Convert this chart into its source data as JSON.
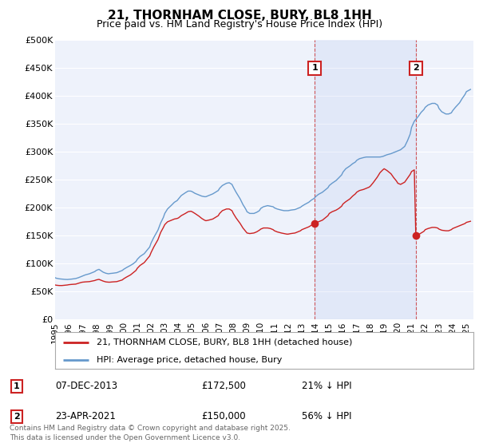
{
  "title": "21, THORNHAM CLOSE, BURY, BL8 1HH",
  "subtitle": "Price paid vs. HM Land Registry's House Price Index (HPI)",
  "ylabel_ticks": [
    "£0",
    "£50K",
    "£100K",
    "£150K",
    "£200K",
    "£250K",
    "£300K",
    "£350K",
    "£400K",
    "£450K",
    "£500K"
  ],
  "ytick_values": [
    0,
    50000,
    100000,
    150000,
    200000,
    250000,
    300000,
    350000,
    400000,
    450000,
    500000
  ],
  "ylim": [
    0,
    500000
  ],
  "xlim_start": 1995.0,
  "xlim_end": 2025.5,
  "background_color": "#ffffff",
  "plot_bg_color": "#eef2fb",
  "grid_color": "#ffffff",
  "hpi_color": "#6699cc",
  "price_color": "#cc2222",
  "legend_label_price": "21, THORNHAM CLOSE, BURY, BL8 1HH (detached house)",
  "legend_label_hpi": "HPI: Average price, detached house, Bury",
  "marker1_x": 2013.93,
  "marker1_y": 172500,
  "marker1_label": "1",
  "marker1_date": "07-DEC-2013",
  "marker1_price": "£172,500",
  "marker1_hpi": "21% ↓ HPI",
  "marker2_x": 2021.31,
  "marker2_y": 150000,
  "marker2_label": "2",
  "marker2_date": "23-APR-2021",
  "marker2_price": "£150,000",
  "marker2_hpi": "56% ↓ HPI",
  "footer": "Contains HM Land Registry data © Crown copyright and database right 2025.\nThis data is licensed under the Open Government Licence v3.0.",
  "hpi_data": [
    [
      1995.0,
      75000
    ],
    [
      1995.1,
      74000
    ],
    [
      1995.2,
      73500
    ],
    [
      1995.3,
      73000
    ],
    [
      1995.5,
      72500
    ],
    [
      1995.7,
      72000
    ],
    [
      1995.9,
      71800
    ],
    [
      1996.0,
      72000
    ],
    [
      1996.2,
      72500
    ],
    [
      1996.5,
      73500
    ],
    [
      1996.7,
      75000
    ],
    [
      1996.9,
      77000
    ],
    [
      1997.0,
      78000
    ],
    [
      1997.2,
      80000
    ],
    [
      1997.5,
      82000
    ],
    [
      1997.7,
      84000
    ],
    [
      1997.9,
      86000
    ],
    [
      1998.0,
      88000
    ],
    [
      1998.2,
      90000
    ],
    [
      1998.5,
      85000
    ],
    [
      1998.7,
      83000
    ],
    [
      1998.9,
      82000
    ],
    [
      1999.0,
      82500
    ],
    [
      1999.2,
      83000
    ],
    [
      1999.5,
      84000
    ],
    [
      1999.7,
      86000
    ],
    [
      1999.9,
      88000
    ],
    [
      2000.0,
      90000
    ],
    [
      2000.2,
      93000
    ],
    [
      2000.5,
      97000
    ],
    [
      2000.7,
      100000
    ],
    [
      2000.9,
      104000
    ],
    [
      2001.0,
      108000
    ],
    [
      2001.2,
      113000
    ],
    [
      2001.5,
      118000
    ],
    [
      2001.7,
      124000
    ],
    [
      2001.9,
      130000
    ],
    [
      2002.0,
      137000
    ],
    [
      2002.2,
      147000
    ],
    [
      2002.5,
      160000
    ],
    [
      2002.7,
      173000
    ],
    [
      2002.9,
      183000
    ],
    [
      2003.0,
      190000
    ],
    [
      2003.2,
      198000
    ],
    [
      2003.5,
      205000
    ],
    [
      2003.7,
      210000
    ],
    [
      2003.9,
      213000
    ],
    [
      2004.0,
      216000
    ],
    [
      2004.2,
      222000
    ],
    [
      2004.5,
      227000
    ],
    [
      2004.7,
      230000
    ],
    [
      2004.9,
      230000
    ],
    [
      2005.0,
      229000
    ],
    [
      2005.2,
      226000
    ],
    [
      2005.5,
      223000
    ],
    [
      2005.7,
      221000
    ],
    [
      2005.9,
      220000
    ],
    [
      2006.0,
      220000
    ],
    [
      2006.2,
      222000
    ],
    [
      2006.5,
      225000
    ],
    [
      2006.7,
      228000
    ],
    [
      2006.9,
      231000
    ],
    [
      2007.0,
      235000
    ],
    [
      2007.2,
      240000
    ],
    [
      2007.5,
      244000
    ],
    [
      2007.7,
      245000
    ],
    [
      2007.9,
      242000
    ],
    [
      2008.0,
      237000
    ],
    [
      2008.2,
      228000
    ],
    [
      2008.5,
      216000
    ],
    [
      2008.7,
      206000
    ],
    [
      2008.9,
      198000
    ],
    [
      2009.0,
      193000
    ],
    [
      2009.2,
      190000
    ],
    [
      2009.5,
      190000
    ],
    [
      2009.7,
      192000
    ],
    [
      2009.9,
      195000
    ],
    [
      2010.0,
      199000
    ],
    [
      2010.2,
      202000
    ],
    [
      2010.5,
      204000
    ],
    [
      2010.7,
      203000
    ],
    [
      2010.9,
      202000
    ],
    [
      2011.0,
      200000
    ],
    [
      2011.2,
      198000
    ],
    [
      2011.5,
      196000
    ],
    [
      2011.7,
      195000
    ],
    [
      2011.9,
      195000
    ],
    [
      2012.0,
      195000
    ],
    [
      2012.2,
      196000
    ],
    [
      2012.5,
      197000
    ],
    [
      2012.7,
      199000
    ],
    [
      2012.9,
      201000
    ],
    [
      2013.0,
      203000
    ],
    [
      2013.2,
      206000
    ],
    [
      2013.5,
      210000
    ],
    [
      2013.7,
      214000
    ],
    [
      2013.9,
      217000
    ],
    [
      2014.0,
      220000
    ],
    [
      2014.2,
      224000
    ],
    [
      2014.5,
      228000
    ],
    [
      2014.7,
      232000
    ],
    [
      2014.9,
      236000
    ],
    [
      2015.0,
      240000
    ],
    [
      2015.2,
      244000
    ],
    [
      2015.5,
      249000
    ],
    [
      2015.7,
      254000
    ],
    [
      2015.9,
      259000
    ],
    [
      2016.0,
      264000
    ],
    [
      2016.2,
      270000
    ],
    [
      2016.5,
      275000
    ],
    [
      2016.7,
      279000
    ],
    [
      2016.9,
      282000
    ],
    [
      2017.0,
      285000
    ],
    [
      2017.2,
      288000
    ],
    [
      2017.5,
      290000
    ],
    [
      2017.7,
      291000
    ],
    [
      2017.9,
      291000
    ],
    [
      2018.0,
      291000
    ],
    [
      2018.2,
      291000
    ],
    [
      2018.5,
      291000
    ],
    [
      2018.7,
      291000
    ],
    [
      2018.9,
      292000
    ],
    [
      2019.0,
      293000
    ],
    [
      2019.2,
      295000
    ],
    [
      2019.5,
      297000
    ],
    [
      2019.7,
      299000
    ],
    [
      2019.9,
      301000
    ],
    [
      2020.0,
      302000
    ],
    [
      2020.2,
      304000
    ],
    [
      2020.5,
      310000
    ],
    [
      2020.7,
      320000
    ],
    [
      2020.9,
      332000
    ],
    [
      2021.0,
      344000
    ],
    [
      2021.2,
      355000
    ],
    [
      2021.5,
      364000
    ],
    [
      2021.7,
      371000
    ],
    [
      2021.9,
      376000
    ],
    [
      2022.0,
      380000
    ],
    [
      2022.2,
      384000
    ],
    [
      2022.5,
      387000
    ],
    [
      2022.7,
      387000
    ],
    [
      2022.9,
      384000
    ],
    [
      2023.0,
      378000
    ],
    [
      2023.2,
      372000
    ],
    [
      2023.5,
      368000
    ],
    [
      2023.7,
      368000
    ],
    [
      2023.9,
      370000
    ],
    [
      2024.0,
      374000
    ],
    [
      2024.2,
      380000
    ],
    [
      2024.5,
      388000
    ],
    [
      2024.7,
      396000
    ],
    [
      2024.9,
      403000
    ],
    [
      2025.0,
      408000
    ],
    [
      2025.3,
      412000
    ]
  ],
  "price_data_seg1": [
    [
      1995.0,
      62000
    ],
    [
      1995.1,
      61500
    ],
    [
      1995.3,
      61000
    ],
    [
      1995.5,
      61000
    ],
    [
      1995.7,
      61500
    ],
    [
      1995.9,
      62000
    ],
    [
      1996.0,
      62500
    ],
    [
      1996.2,
      63000
    ],
    [
      1996.5,
      63500
    ],
    [
      1996.7,
      65000
    ],
    [
      1996.9,
      66500
    ],
    [
      1997.0,
      67000
    ],
    [
      1997.2,
      67500
    ],
    [
      1997.5,
      68000
    ],
    [
      1997.7,
      69000
    ],
    [
      1997.9,
      70000
    ],
    [
      1998.0,
      71000
    ],
    [
      1998.2,
      72000
    ],
    [
      1998.5,
      69000
    ],
    [
      1998.7,
      67500
    ],
    [
      1998.9,
      67000
    ],
    [
      1999.0,
      67000
    ],
    [
      1999.2,
      67500
    ],
    [
      1999.5,
      68000
    ],
    [
      1999.7,
      69500
    ],
    [
      1999.9,
      71000
    ],
    [
      2000.0,
      73000
    ],
    [
      2000.2,
      76000
    ],
    [
      2000.5,
      80000
    ],
    [
      2000.7,
      84000
    ],
    [
      2000.9,
      88000
    ],
    [
      2001.0,
      92000
    ],
    [
      2001.2,
      97000
    ],
    [
      2001.5,
      102000
    ],
    [
      2001.7,
      108000
    ],
    [
      2001.9,
      114000
    ],
    [
      2002.0,
      120000
    ],
    [
      2002.2,
      130000
    ],
    [
      2002.5,
      143000
    ],
    [
      2002.7,
      156000
    ],
    [
      2002.9,
      165000
    ],
    [
      2003.0,
      170000
    ],
    [
      2003.2,
      175000
    ],
    [
      2003.5,
      178000
    ],
    [
      2003.7,
      180000
    ],
    [
      2003.9,
      181000
    ],
    [
      2004.0,
      182000
    ],
    [
      2004.2,
      186000
    ],
    [
      2004.5,
      190000
    ],
    [
      2004.7,
      193000
    ],
    [
      2004.9,
      194000
    ],
    [
      2005.0,
      193000
    ],
    [
      2005.2,
      190000
    ],
    [
      2005.5,
      185000
    ],
    [
      2005.7,
      181000
    ],
    [
      2005.9,
      178000
    ],
    [
      2006.0,
      177000
    ],
    [
      2006.2,
      178000
    ],
    [
      2006.5,
      180000
    ],
    [
      2006.7,
      183000
    ],
    [
      2006.9,
      186000
    ],
    [
      2007.0,
      190000
    ],
    [
      2007.2,
      195000
    ],
    [
      2007.5,
      198000
    ],
    [
      2007.7,
      198000
    ],
    [
      2007.9,
      195000
    ],
    [
      2008.0,
      190000
    ],
    [
      2008.2,
      182000
    ],
    [
      2008.5,
      172000
    ],
    [
      2008.7,
      164000
    ],
    [
      2008.9,
      158000
    ],
    [
      2009.0,
      155000
    ],
    [
      2009.2,
      154000
    ],
    [
      2009.5,
      155000
    ],
    [
      2009.7,
      157000
    ],
    [
      2009.9,
      160000
    ],
    [
      2010.0,
      162000
    ],
    [
      2010.2,
      164000
    ],
    [
      2010.5,
      164000
    ],
    [
      2010.7,
      163000
    ],
    [
      2010.9,
      161000
    ],
    [
      2011.0,
      159000
    ],
    [
      2011.2,
      157000
    ],
    [
      2011.5,
      155000
    ],
    [
      2011.7,
      154000
    ],
    [
      2011.9,
      153000
    ],
    [
      2012.0,
      153000
    ],
    [
      2012.2,
      154000
    ],
    [
      2012.5,
      155000
    ],
    [
      2012.7,
      157000
    ],
    [
      2012.9,
      159000
    ],
    [
      2013.0,
      161000
    ],
    [
      2013.2,
      163000
    ],
    [
      2013.5,
      166000
    ],
    [
      2013.7,
      169000
    ],
    [
      2013.93,
      172500
    ]
  ],
  "price_data_seg2": [
    [
      2013.93,
      172500
    ],
    [
      2014.0,
      173000
    ],
    [
      2014.2,
      175000
    ],
    [
      2014.5,
      178000
    ],
    [
      2014.7,
      182000
    ],
    [
      2014.9,
      186000
    ],
    [
      2015.0,
      190000
    ],
    [
      2015.2,
      193000
    ],
    [
      2015.5,
      196000
    ],
    [
      2015.7,
      199000
    ],
    [
      2015.9,
      203000
    ],
    [
      2016.0,
      207000
    ],
    [
      2016.2,
      211000
    ],
    [
      2016.5,
      216000
    ],
    [
      2016.7,
      221000
    ],
    [
      2016.9,
      225000
    ],
    [
      2017.0,
      228000
    ],
    [
      2017.2,
      231000
    ],
    [
      2017.5,
      233000
    ],
    [
      2017.7,
      235000
    ],
    [
      2017.9,
      237000
    ],
    [
      2018.0,
      239000
    ],
    [
      2018.2,
      245000
    ],
    [
      2018.5,
      255000
    ],
    [
      2018.7,
      263000
    ],
    [
      2018.9,
      268000
    ],
    [
      2019.0,
      270000
    ],
    [
      2019.2,
      267000
    ],
    [
      2019.5,
      261000
    ],
    [
      2019.7,
      254000
    ],
    [
      2019.9,
      248000
    ],
    [
      2020.0,
      244000
    ],
    [
      2020.2,
      242000
    ],
    [
      2020.5,
      246000
    ],
    [
      2020.7,
      253000
    ],
    [
      2020.9,
      260000
    ],
    [
      2021.0,
      265000
    ],
    [
      2021.2,
      268000
    ],
    [
      2021.31,
      150000
    ]
  ],
  "price_data_seg3": [
    [
      2021.31,
      150000
    ],
    [
      2021.5,
      152000
    ],
    [
      2021.7,
      155000
    ],
    [
      2021.9,
      158000
    ],
    [
      2022.0,
      161000
    ],
    [
      2022.2,
      163000
    ],
    [
      2022.5,
      165000
    ],
    [
      2022.7,
      165000
    ],
    [
      2022.9,
      164000
    ],
    [
      2023.0,
      162000
    ],
    [
      2023.2,
      160000
    ],
    [
      2023.5,
      159000
    ],
    [
      2023.7,
      159000
    ],
    [
      2023.9,
      161000
    ],
    [
      2024.0,
      163000
    ],
    [
      2024.2,
      165000
    ],
    [
      2024.5,
      168000
    ],
    [
      2024.7,
      170000
    ],
    [
      2024.9,
      172000
    ],
    [
      2025.0,
      174000
    ],
    [
      2025.3,
      176000
    ]
  ]
}
